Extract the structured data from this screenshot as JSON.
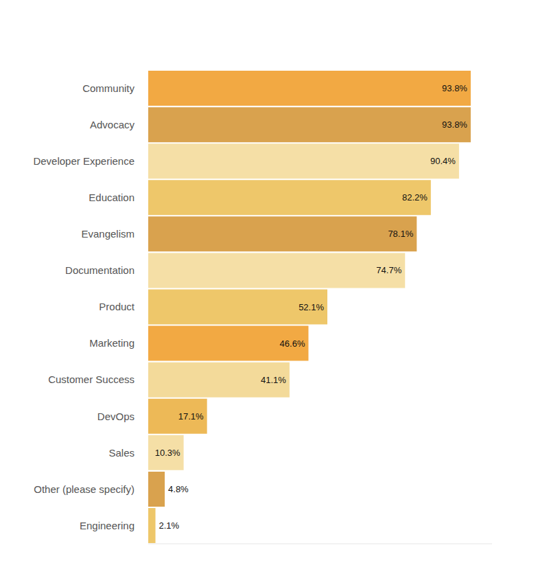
{
  "chart_data": {
    "type": "bar",
    "orientation": "horizontal",
    "categories": [
      "Community",
      "Advocacy",
      "Developer Experience",
      "Education",
      "Evangelism",
      "Documentation",
      "Product",
      "Marketing",
      "Customer Success",
      "DevOps",
      "Sales",
      "Other (please specify)",
      "Engineering"
    ],
    "values": [
      93.8,
      93.8,
      90.4,
      82.2,
      78.1,
      74.7,
      52.1,
      46.6,
      41.1,
      17.1,
      10.3,
      4.8,
      2.1
    ],
    "value_labels": [
      "93.8%",
      "93.8%",
      "90.4%",
      "82.2%",
      "78.1%",
      "74.7%",
      "52.1%",
      "46.6%",
      "41.1%",
      "17.1%",
      "10.3%",
      "4.8%",
      "2.1%"
    ],
    "colors": [
      "#f2a943",
      "#d9a24e",
      "#f5dfa6",
      "#eec76a",
      "#d9a24e",
      "#f5dfa6",
      "#eec76a",
      "#f2a943",
      "#f3da9a",
      "#edb957",
      "#f5dfa6",
      "#d9a24e",
      "#eec76a"
    ],
    "xlim": [
      0,
      100
    ],
    "data_labels": true,
    "tick_labels": "y",
    "grid": false
  }
}
